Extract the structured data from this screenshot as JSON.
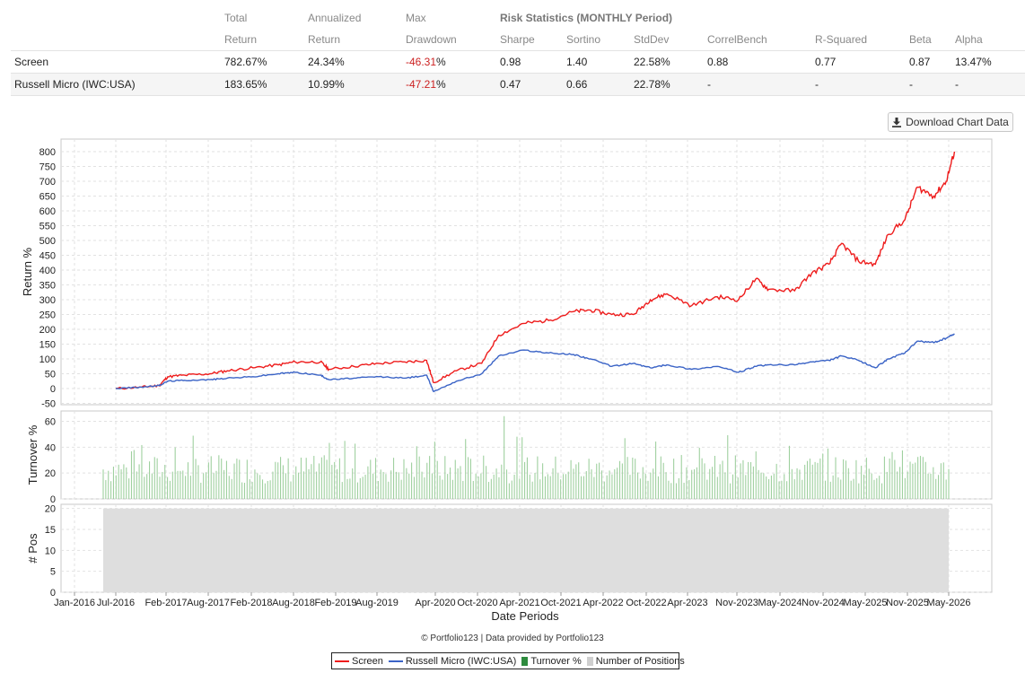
{
  "table": {
    "headers_top": [
      "Total",
      "Annualized",
      "Max",
      "Risk Statistics (MONTHLY Period)"
    ],
    "headers_bottom": [
      "Return",
      "Return",
      "Drawdown",
      "Sharpe",
      "Sortino",
      "StdDev",
      "CorrelBench",
      "R-Squared",
      "Beta",
      "Alpha"
    ],
    "rows": [
      {
        "name": "Screen",
        "total": "782.67%",
        "annualized": "24.34%",
        "drawdown": "-46.31",
        "drawdown_pct": "%",
        "sharpe": "0.98",
        "sortino": "1.40",
        "stddev": "22.58%",
        "correl": "0.88",
        "rsq": "0.77",
        "beta": "0.87",
        "alpha": "13.47%"
      },
      {
        "name": "Russell Micro (IWC:USA)",
        "total": "183.65%",
        "annualized": "10.99%",
        "drawdown": "-47.21",
        "drawdown_pct": "%",
        "sharpe": "0.47",
        "sortino": "0.66",
        "stddev": "22.78%",
        "correl": "-",
        "rsq": "-",
        "beta": "-",
        "alpha": "-"
      }
    ],
    "negative_color": "#cc2222"
  },
  "download_button": {
    "label": "Download Chart Data",
    "icon": "download-icon"
  },
  "footer": {
    "credit": "© Portfolio123 | Data provided by Portfolio123"
  },
  "legend": {
    "items": [
      "Screen",
      "Russell Micro (IWC:USA)",
      "Turnover %",
      "Number of Positions"
    ]
  },
  "chart_data": {
    "type": "line",
    "title": "",
    "xlabel": "Date Periods",
    "ylabel": "Return %",
    "ylim": [
      -50,
      820
    ],
    "x_ticks": [
      "Jan-2016",
      "Jul-2016",
      "Feb-2017",
      "Aug-2017",
      "Feb-2018",
      "Aug-2018",
      "Feb-2019",
      "Aug-2019",
      "Apr-2020",
      "Oct-2020",
      "Apr-2021",
      "Oct-2021",
      "Apr-2022",
      "Oct-2022",
      "Apr-2023",
      "Nov-2023",
      "May-2024",
      "Nov-2024",
      "May-2025",
      "Nov-2025",
      "May-2026"
    ],
    "y_ticks": [
      -50,
      0,
      50,
      100,
      150,
      200,
      250,
      300,
      350,
      400,
      450,
      500,
      550,
      600,
      650,
      700,
      750,
      800
    ],
    "x": [
      2016.5,
      2016.8,
      2017.0,
      2017.1,
      2017.3,
      2017.6,
      2017.8,
      2018.1,
      2018.4,
      2018.6,
      2018.9,
      2019.0,
      2019.3,
      2019.6,
      2019.9,
      2020.15,
      2020.23,
      2020.5,
      2020.8,
      2021.0,
      2021.3,
      2021.6,
      2021.9,
      2022.1,
      2022.35,
      2022.6,
      2022.8,
      2023.0,
      2023.3,
      2023.6,
      2023.85,
      2024.05,
      2024.2,
      2024.5,
      2024.7,
      2024.9,
      2025.05,
      2025.25,
      2025.45,
      2025.6,
      2025.8,
      2025.95,
      2026.15,
      2026.3,
      2026.4
    ],
    "series": [
      {
        "name": "Screen",
        "color": "#ee1c1c",
        "values": [
          0,
          5,
          10,
          40,
          45,
          50,
          60,
          70,
          80,
          90,
          90,
          65,
          75,
          85,
          90,
          95,
          20,
          60,
          85,
          180,
          220,
          230,
          260,
          265,
          250,
          250,
          300,
          320,
          280,
          310,
          300,
          370,
          335,
          330,
          390,
          420,
          490,
          430,
          420,
          520,
          570,
          680,
          650,
          700,
          800
        ]
      },
      {
        "name": "Russell Micro (IWC:USA)",
        "color": "#3a63c6",
        "values": [
          0,
          5,
          10,
          25,
          28,
          30,
          35,
          40,
          50,
          55,
          45,
          30,
          35,
          40,
          35,
          45,
          -10,
          25,
          50,
          110,
          130,
          120,
          115,
          100,
          75,
          85,
          70,
          80,
          65,
          75,
          55,
          75,
          80,
          80,
          90,
          95,
          110,
          95,
          70,
          100,
          120,
          160,
          155,
          170,
          185
        ]
      }
    ],
    "turnover": {
      "name": "Turnover %",
      "color": "#9fd09f",
      "ylim": [
        0,
        68
      ],
      "y_ticks": [
        0,
        20,
        40,
        60
      ]
    },
    "positions": {
      "name": "Number of Positions",
      "color": "#dedede",
      "value": 20,
      "ylim": [
        0,
        21
      ],
      "y_ticks": [
        0,
        5,
        10,
        15,
        20
      ]
    }
  }
}
